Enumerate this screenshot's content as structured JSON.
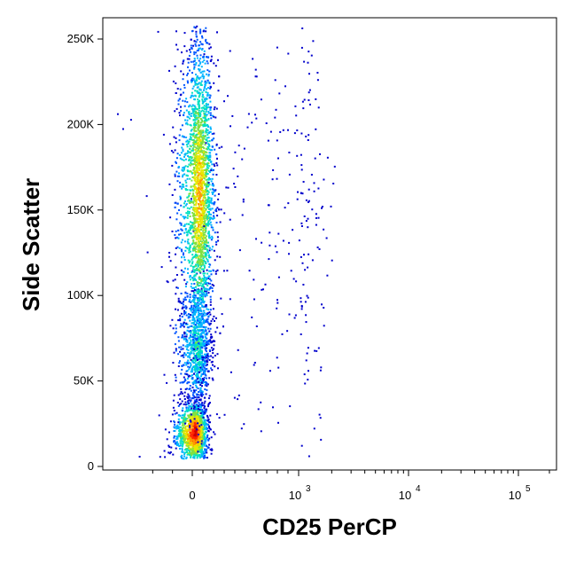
{
  "chart_data": {
    "type": "scatter",
    "style": "density pseudocolor dot plot",
    "xlabel": "CD25 PerCP",
    "ylabel": "Side Scatter",
    "x_scale": "biexponential (logicle)",
    "y_scale": "linear",
    "xlim": [
      -300,
      200000
    ],
    "ylim": [
      0,
      262144
    ],
    "x_ticks": [
      {
        "value": 0,
        "base": "0",
        "exp": ""
      },
      {
        "value": 1000,
        "base": "10",
        "exp": "3"
      },
      {
        "value": 10000,
        "base": "10",
        "exp": "4"
      },
      {
        "value": 100000,
        "base": "10",
        "exp": "5"
      }
    ],
    "y_ticks": [
      {
        "value": 0,
        "label": "0"
      },
      {
        "value": 50000,
        "label": "50K"
      },
      {
        "value": 100000,
        "label": "100K"
      },
      {
        "value": 150000,
        "label": "150K"
      },
      {
        "value": 200000,
        "label": "200K"
      },
      {
        "value": 250000,
        "label": "250K"
      }
    ],
    "populations": [
      {
        "name": "",
        "x_center": 20,
        "x_spread": 55,
        "y_center": 20000,
        "y_spread": 9000,
        "density": "highest"
      },
      {
        "name": "",
        "x_center": 40,
        "x_spread": 65,
        "y_center": 70000,
        "y_spread": 18000,
        "density": "medium"
      },
      {
        "name": "",
        "x_center": 60,
        "x_spread": 70,
        "y_center": 160000,
        "y_spread": 45000,
        "density": "high"
      },
      {
        "name": "",
        "x_center": 900,
        "x_spread": 500,
        "y_center": 150000,
        "y_spread": 70000,
        "density": "sparse"
      }
    ],
    "colormap": [
      "#0000cc",
      "#0055ff",
      "#00b4ff",
      "#00e0c0",
      "#7fe040",
      "#e8e800",
      "#ff9900",
      "#ff2200",
      "#cc0000"
    ],
    "grid": false,
    "legend": "none"
  }
}
